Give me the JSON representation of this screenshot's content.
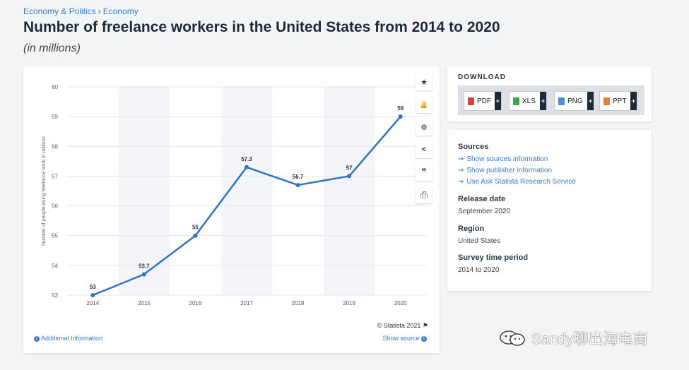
{
  "breadcrumb": {
    "parent": "Economy & Politics",
    "child": "Economy"
  },
  "title": "Number of freelance workers in the United States from 2014 to 2020",
  "subtitle": "(in millions)",
  "chart_data": {
    "type": "line",
    "title": "Number of freelance workers in the United States from 2014 to 2020",
    "subtitle": "(in millions)",
    "xlabel": "",
    "ylabel": "Number of people doing freelance work in millions",
    "categories": [
      "2014",
      "2015",
      "2016",
      "2017",
      "2018",
      "2019",
      "2020"
    ],
    "values": [
      53,
      53.7,
      55,
      57.3,
      56.7,
      57,
      59
    ],
    "data_labels": [
      "53",
      "53.7",
      "55",
      "57.3",
      "56.7",
      "57",
      "59"
    ],
    "ylim": [
      53,
      60
    ],
    "yticks": [
      53,
      54,
      55,
      56,
      57,
      58,
      59,
      60
    ],
    "yticks_labels": [
      "53",
      "54",
      "55",
      "56",
      "57",
      "58",
      "59",
      "60"
    ],
    "line_color": "#2f73c4",
    "grid": true
  },
  "tools": [
    {
      "name": "favorite",
      "glyph": "★"
    },
    {
      "name": "notification",
      "glyph": "🔔"
    },
    {
      "name": "settings",
      "glyph": "⚙"
    },
    {
      "name": "share",
      "glyph": "<"
    },
    {
      "name": "cite",
      "glyph": "❞"
    },
    {
      "name": "print",
      "glyph": "⎙"
    }
  ],
  "copyright": "© Statista 2021",
  "additional_info": "Additional Information",
  "show_source": "Show source",
  "download": {
    "title": "DOWNLOAD",
    "buttons": [
      {
        "label": "PDF",
        "plus": "+",
        "color": "#d9403a"
      },
      {
        "label": "XLS",
        "plus": "+",
        "color": "#3fa34d"
      },
      {
        "label": "PNG",
        "plus": "+",
        "color": "#4a8fd4"
      },
      {
        "label": "PPT",
        "plus": "+",
        "color": "#e0833a"
      }
    ]
  },
  "info": {
    "sources_heading": "Sources",
    "links": [
      "Show sources information",
      "Show publisher information",
      "Use Ask Statista Research Service"
    ],
    "link_arrow": "➞",
    "release_heading": "Release date",
    "release_value": "September 2020",
    "region_heading": "Region",
    "region_value": "United States",
    "survey_heading": "Survey time period",
    "survey_value": "2014 to 2020"
  },
  "watermark": "Sandy聊出海电商"
}
